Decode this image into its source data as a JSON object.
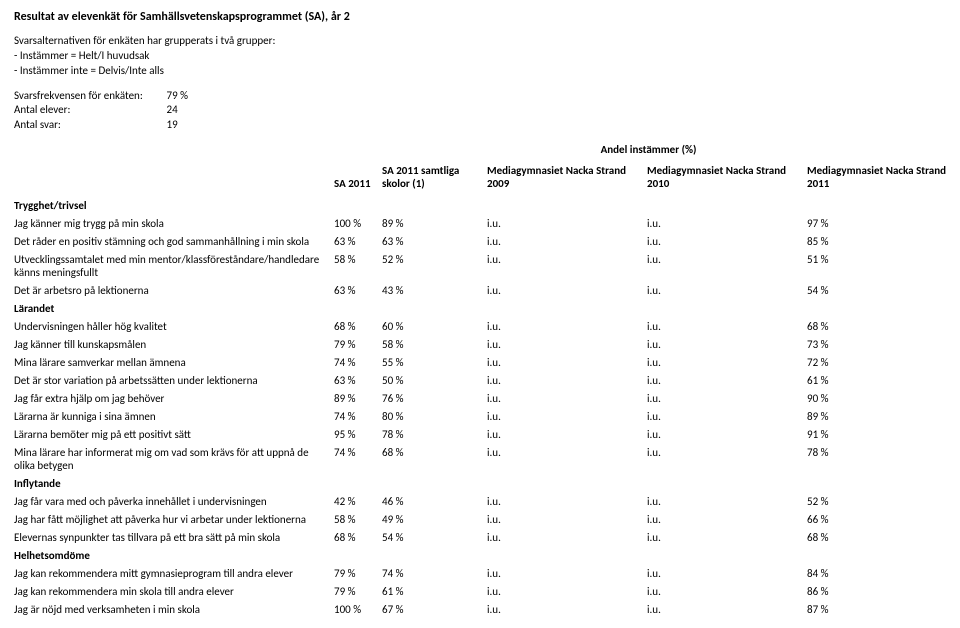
{
  "title": "Resultat av elevenkät för Samhällsvetenskapsprogrammet (SA), år 2",
  "intro": {
    "line1": "Svarsalternativen för enkäten har grupperats i två grupper:",
    "line2": "- Instämmer = Helt/I huvudsak",
    "line3": "- Instämmer inte = Delvis/Inte alls"
  },
  "meta": {
    "freq_label": "Svarsfrekvensen för enkäten:",
    "freq_val": "79 %",
    "students_label": "Antal elever:",
    "students_val": "24",
    "answers_label": "Antal svar:",
    "answers_val": "19"
  },
  "super_header": "Andel instämmer (%)",
  "columns": {
    "c1": "SA 2011",
    "c2": "SA 2011 samtliga skolor (1)",
    "c3": "Mediagymnasiet Nacka Strand 2009",
    "c4": "Mediagymnasiet Nacka Strand 2010",
    "c5": "Mediagymnasiet Nacka Strand 2011"
  },
  "sections": [
    {
      "name": "Trygghet/trivsel",
      "rows": [
        {
          "label": "Jag känner mig trygg på min skola",
          "v": [
            "100 %",
            "89 %",
            "i.u.",
            "i.u.",
            "97 %"
          ]
        },
        {
          "label": "Det råder en positiv stämning och god sammanhållning i min skola",
          "v": [
            "63 %",
            "63 %",
            "i.u.",
            "i.u.",
            "85 %"
          ]
        },
        {
          "label": "Utvecklingssamtalet med min mentor/klassföreståndare/handledare känns meningsfullt",
          "v": [
            "58 %",
            "52 %",
            "i.u.",
            "i.u.",
            "51 %"
          ]
        },
        {
          "label": "Det är arbetsro på lektionerna",
          "v": [
            "63 %",
            "43 %",
            "i.u.",
            "i.u.",
            "54 %"
          ]
        }
      ]
    },
    {
      "name": "Lärandet",
      "rows": [
        {
          "label": "Undervisningen håller hög kvalitet",
          "v": [
            "68 %",
            "60 %",
            "i.u.",
            "i.u.",
            "68 %"
          ]
        },
        {
          "label": "Jag känner till kunskapsmålen",
          "v": [
            "79 %",
            "58 %",
            "i.u.",
            "i.u.",
            "73 %"
          ]
        },
        {
          "label": "Mina lärare samverkar mellan ämnena",
          "v": [
            "74 %",
            "55 %",
            "i.u.",
            "i.u.",
            "72 %"
          ]
        },
        {
          "label": "Det är stor variation på arbetssätten under lektionerna",
          "v": [
            "63 %",
            "50 %",
            "i.u.",
            "i.u.",
            "61 %"
          ]
        },
        {
          "label": "Jag får extra hjälp om jag behöver",
          "v": [
            "89 %",
            "76 %",
            "i.u.",
            "i.u.",
            "90 %"
          ]
        },
        {
          "label": "Lärarna är kunniga i sina ämnen",
          "v": [
            "74 %",
            "80 %",
            "i.u.",
            "i.u.",
            "89 %"
          ]
        },
        {
          "label": "Lärarna bemöter mig på ett positivt sätt",
          "v": [
            "95 %",
            "78 %",
            "i.u.",
            "i.u.",
            "91 %"
          ]
        },
        {
          "label": "Mina lärare har informerat mig om vad som krävs för att uppnå de olika betygen",
          "v": [
            "74 %",
            "68 %",
            "i.u.",
            "i.u.",
            "78 %"
          ]
        }
      ]
    },
    {
      "name": "Inflytande",
      "rows": [
        {
          "label": "Jag får vara med och påverka innehållet i undervisningen",
          "v": [
            "42 %",
            "46 %",
            "i.u.",
            "i.u.",
            "52 %"
          ]
        },
        {
          "label": "Jag har fått möjlighet att påverka hur vi arbetar under lektionerna",
          "v": [
            "58 %",
            "49 %",
            "i.u.",
            "i.u.",
            "66 %"
          ]
        },
        {
          "label": "Elevernas synpunkter tas tillvara på ett bra sätt på min skola",
          "v": [
            "68 %",
            "54 %",
            "i.u.",
            "i.u.",
            "68 %"
          ]
        }
      ]
    },
    {
      "name": "Helhetsomdöme",
      "rows": [
        {
          "label": "Jag kan rekommendera mitt gymnasieprogram till andra elever",
          "v": [
            "79 %",
            "74 %",
            "i.u.",
            "i.u.",
            "84 %"
          ]
        },
        {
          "label": "Jag kan rekommendera min skola till andra elever",
          "v": [
            "79 %",
            "61 %",
            "i.u.",
            "i.u.",
            "86 %"
          ]
        },
        {
          "label": "Jag är nöjd med verksamheten i min skola",
          "v": [
            "100 %",
            "67 %",
            "i.u.",
            "i.u.",
            "87 %"
          ]
        }
      ]
    }
  ]
}
